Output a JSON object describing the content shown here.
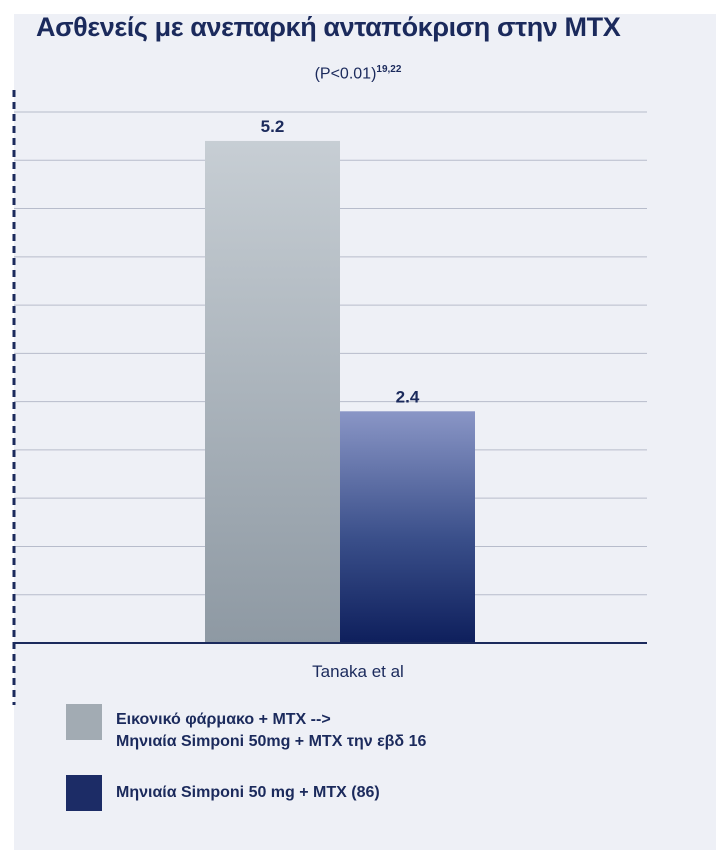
{
  "chart_data": {
    "type": "bar",
    "title": "Ασθενείς με ανεπαρκή ανταπόκριση στην ΜΤΧ",
    "subtitle": "(P<0.01)",
    "subtitle_refs": "19,22",
    "categories": [
      "Tanaka et al"
    ],
    "series": [
      {
        "name": "Εικονικό φάρμακο + MTX -->\nΜηνιαία Simponi 50mg + MTX την εβδ 16",
        "values": [
          5.2
        ],
        "data_label": "5.2",
        "color": "#a9b2ba"
      },
      {
        "name": "Μηνιαία Simponi 50 mg + MTX (86)",
        "values": [
          2.4
        ],
        "data_label": "2.4",
        "color": "#1f3068"
      }
    ],
    "ylim": [
      0,
      5.5
    ],
    "grid": true,
    "xlabel": "",
    "ylabel": "",
    "legend_position": "bottom-left"
  }
}
